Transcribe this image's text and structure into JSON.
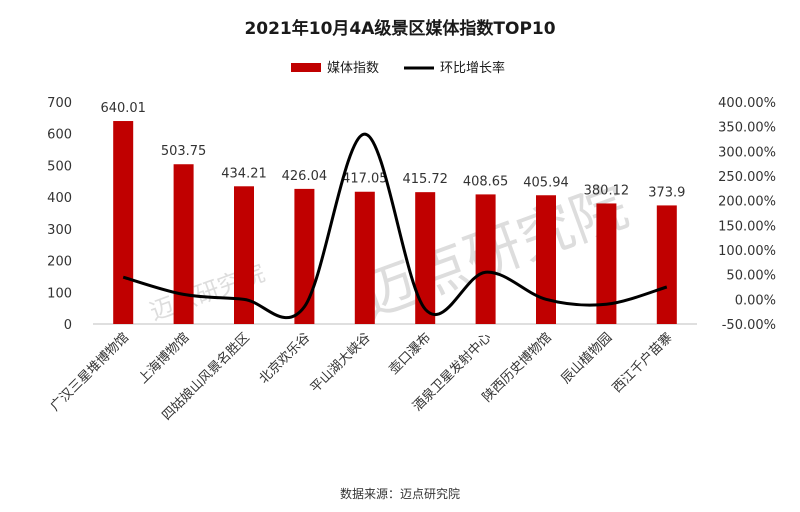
{
  "chart_data": {
    "type": "bar",
    "title": "2021年10月4A级景区媒体指数TOP10",
    "categories": [
      "广汉三星堆博物馆",
      "上海博物馆",
      "四姑娘山风景名胜区",
      "北京欢乐谷",
      "平山湖大峡谷",
      "壶口瀑布",
      "酒泉卫星发射中心",
      "陕西历史博物馆",
      "辰山植物园",
      "西江千户苗寨"
    ],
    "series": [
      {
        "name": "媒体指数",
        "type": "bar",
        "axis": "left",
        "values": [
          640.01,
          503.75,
          434.21,
          426.04,
          417.05,
          415.72,
          408.65,
          405.94,
          380.12,
          373.9
        ],
        "labels": [
          "640.01",
          "503.75",
          "434.21",
          "426.04",
          "417.05",
          "415.72",
          "408.65",
          "405.94",
          "380.12",
          "373.9"
        ]
      },
      {
        "name": "环比增长率",
        "type": "line",
        "axis": "right",
        "values": [
          45,
          10,
          0,
          -15,
          335,
          -20,
          55,
          0,
          -10,
          25
        ]
      }
    ],
    "ylim_left": [
      0,
      700
    ],
    "yticks_left": [
      "0",
      "100",
      "200",
      "300",
      "400",
      "500",
      "600",
      "700"
    ],
    "ylim_right": [
      -50,
      400
    ],
    "yticks_right": [
      "-50.00%",
      "0.00%",
      "50.00%",
      "100.00%",
      "150.00%",
      "200.00%",
      "250.00%",
      "300.00%",
      "350.00%",
      "400.00%"
    ],
    "legend_position": "top",
    "grid": false,
    "source_note": "数据来源：迈点研究院",
    "watermark": "迈点研究院",
    "colors": {
      "bar": "#c00000",
      "line": "#000000"
    }
  }
}
